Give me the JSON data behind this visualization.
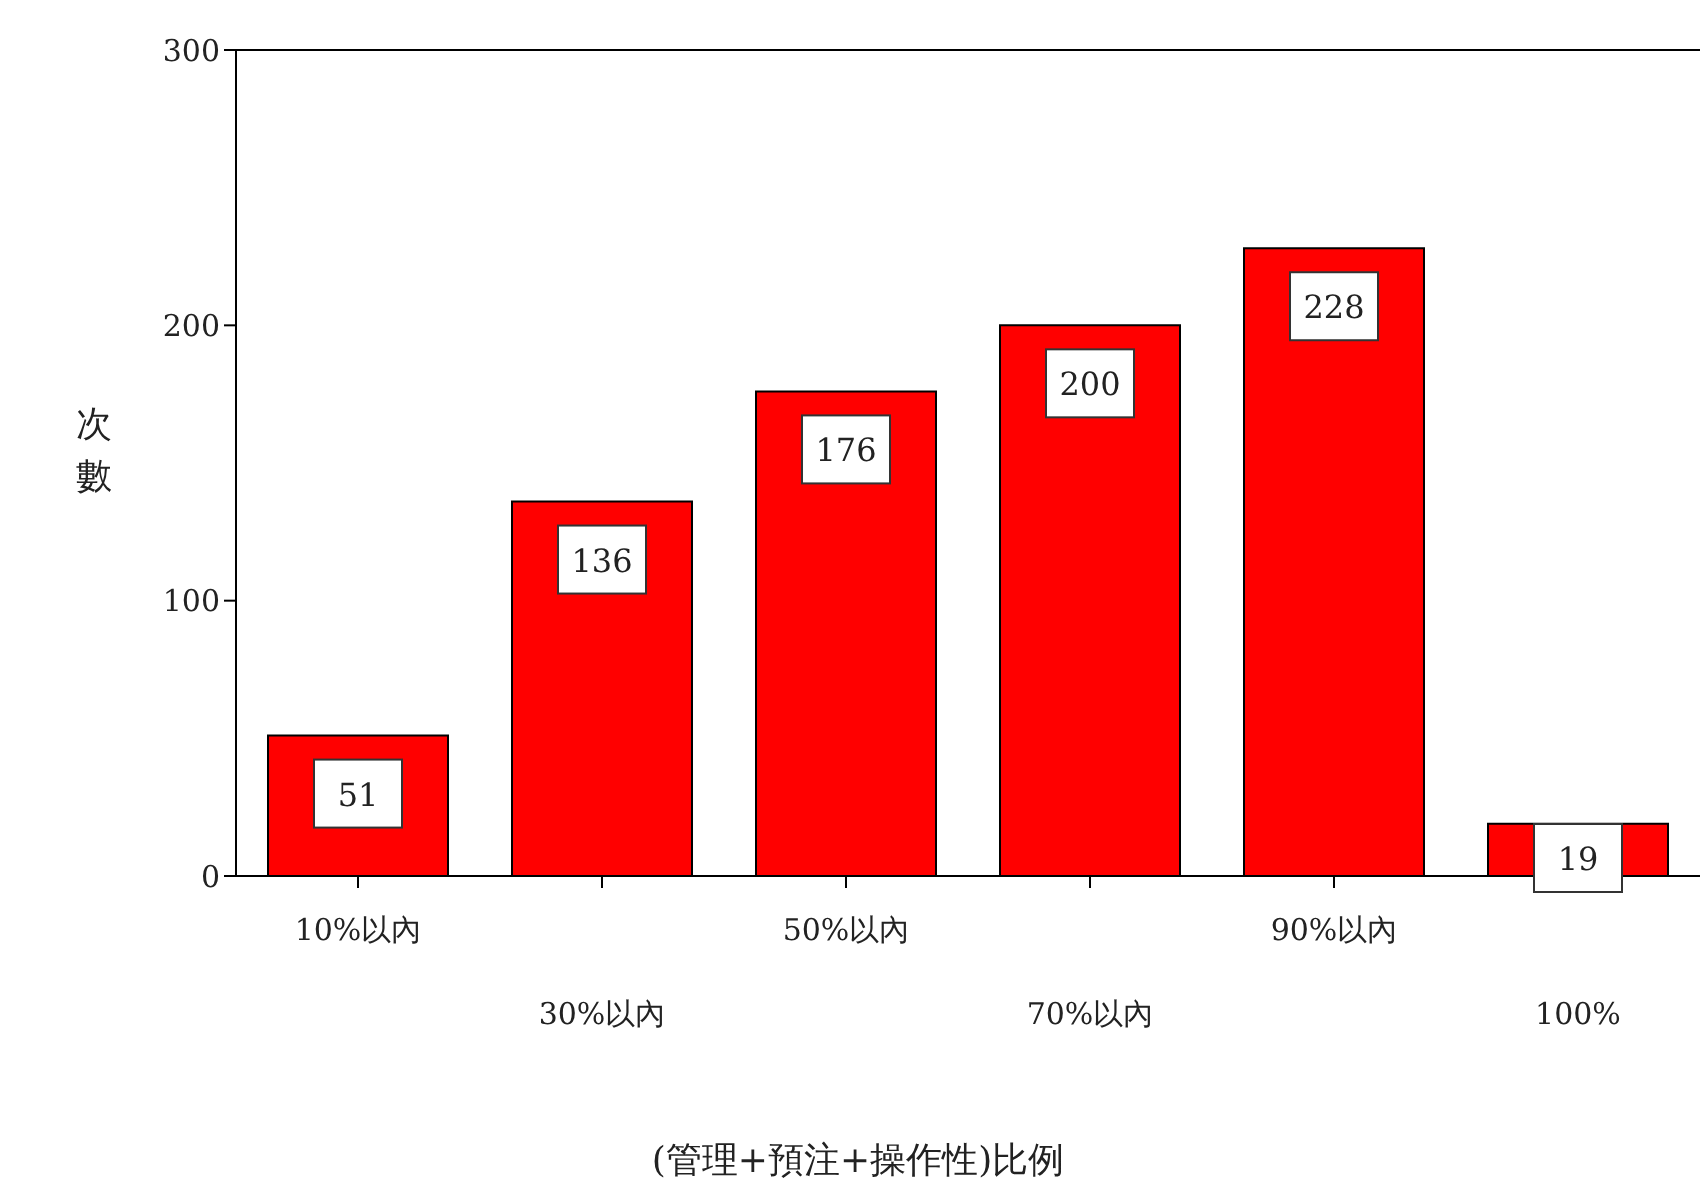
{
  "chart_data": {
    "type": "bar",
    "xlabel": "(管理+預注+操作性)比例",
    "ylabel": "次數",
    "categories": [
      "10%以內",
      "30%以內",
      "50%以內",
      "70%以內",
      "90%以內",
      "100%"
    ],
    "values": [
      51,
      136,
      176,
      200,
      228,
      19
    ],
    "color": "#ff0000",
    "ylim": [
      0,
      300
    ],
    "yticks": [
      0,
      100,
      200,
      300
    ],
    "data_labels": true,
    "grid": false
  }
}
